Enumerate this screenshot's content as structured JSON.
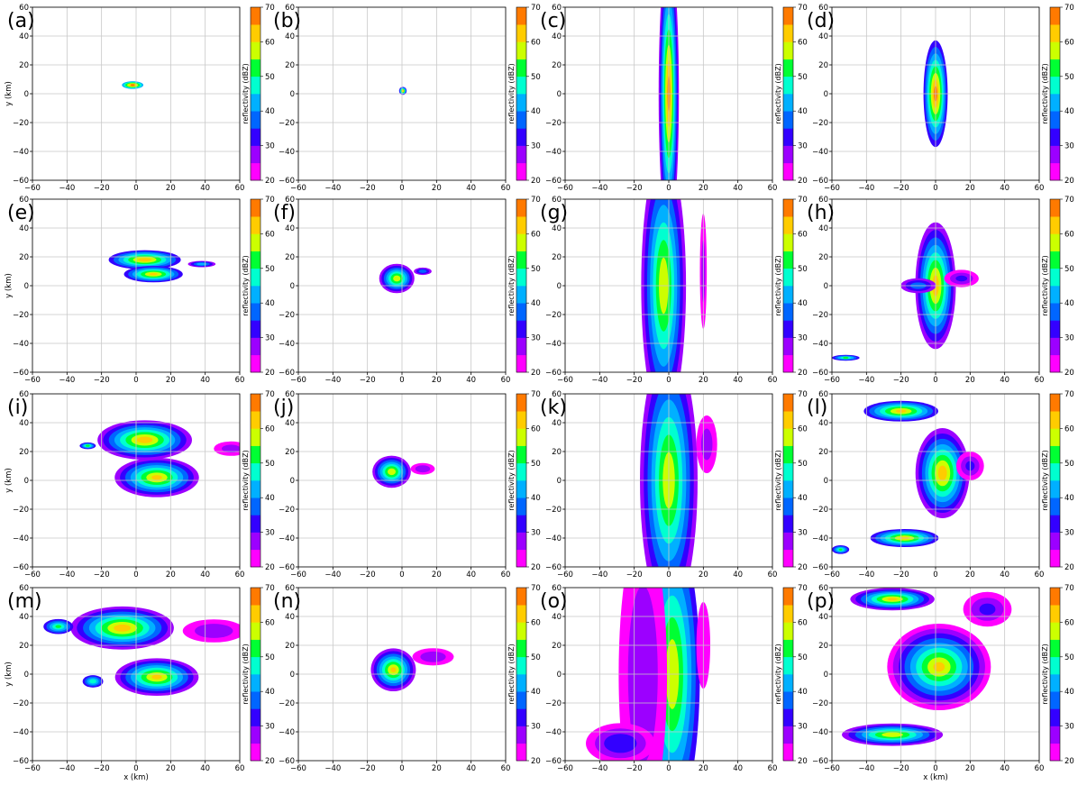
{
  "figure": {
    "colorbar": {
      "label": "reflectivity (dBZ)",
      "boundaries": [
        20,
        25,
        30,
        35,
        40,
        45,
        50,
        55,
        60,
        65,
        70
      ],
      "ticks": [
        20,
        30,
        40,
        50,
        60,
        70
      ],
      "colors": [
        "#ff00ff",
        "#9c00ff",
        "#3300ff",
        "#0066ff",
        "#00b0ff",
        "#00ffd0",
        "#00ff33",
        "#ccff00",
        "#ffcc00",
        "#ff7a00",
        "#ff1a00"
      ]
    }
  },
  "chart_data": [
    {
      "panel": "(a)",
      "type": "heatmap",
      "xlabel": "",
      "ylabel": "y (km)",
      "xlim": [
        -60,
        60
      ],
      "ylim": [
        -60,
        60
      ],
      "xticks": [
        -60,
        -40,
        -20,
        0,
        20,
        40,
        60
      ],
      "yticks": [
        -60,
        -40,
        -20,
        0,
        20,
        40,
        60
      ],
      "grid": true,
      "echoes": [
        {
          "x": -2,
          "y": 6,
          "rx": 7,
          "ry": 3,
          "peak_dBZ": 66,
          "edge_dBZ": 36
        }
      ]
    },
    {
      "panel": "(b)",
      "type": "heatmap",
      "xlabel": "",
      "ylabel": "",
      "xlim": [
        -60,
        60
      ],
      "ylim": [
        -60,
        60
      ],
      "xticks": [
        -60,
        -40,
        -20,
        0,
        20,
        40,
        60
      ],
      "yticks": [
        -60,
        -40,
        -20,
        0,
        20,
        40,
        60
      ],
      "grid": true,
      "echoes": [
        {
          "x": 0.5,
          "y": 2,
          "rx": 2.2,
          "ry": 2.8,
          "peak_dBZ": 64,
          "edge_dBZ": 30
        }
      ]
    },
    {
      "panel": "(c)",
      "type": "heatmap",
      "xlabel": "",
      "ylabel": "",
      "xlim": [
        -60,
        60
      ],
      "ylim": [
        -60,
        60
      ],
      "xticks": [
        -60,
        -40,
        -20,
        0,
        20,
        40,
        60
      ],
      "yticks": [
        -60,
        -40,
        -20,
        0,
        20,
        40,
        60
      ],
      "grid": true,
      "echoes": [
        {
          "x": 0,
          "y": 0,
          "rx": 6,
          "ry": 100,
          "peak_dBZ": 66,
          "edge_dBZ": 24
        }
      ]
    },
    {
      "panel": "(d)",
      "type": "heatmap",
      "xlabel": "",
      "ylabel": "",
      "xlim": [
        -60,
        60
      ],
      "ylim": [
        -60,
        60
      ],
      "xticks": [
        -60,
        -40,
        -20,
        0,
        20,
        40,
        60
      ],
      "yticks": [
        -60,
        -40,
        -20,
        0,
        20,
        40,
        60
      ],
      "grid": true,
      "echoes": [
        {
          "x": 0,
          "y": 0,
          "rx": 7,
          "ry": 37,
          "peak_dBZ": 66,
          "edge_dBZ": 30
        }
      ]
    },
    {
      "panel": "(e)",
      "type": "heatmap",
      "xlabel": "",
      "ylabel": "y (km)",
      "xlim": [
        -60,
        60
      ],
      "ylim": [
        -60,
        60
      ],
      "xticks": [
        -60,
        -40,
        -20,
        0,
        20,
        40,
        60
      ],
      "yticks": [
        -60,
        -40,
        -20,
        0,
        20,
        40,
        60
      ],
      "grid": true,
      "echoes": [
        {
          "x": 5,
          "y": 18,
          "rx": 22,
          "ry": 7,
          "peak_dBZ": 62,
          "edge_dBZ": 28
        },
        {
          "x": 10,
          "y": 8,
          "rx": 18,
          "ry": 6,
          "peak_dBZ": 60,
          "edge_dBZ": 28
        },
        {
          "x": 38,
          "y": 15,
          "rx": 9,
          "ry": 2.5,
          "peak_dBZ": 44,
          "edge_dBZ": 22
        }
      ]
    },
    {
      "panel": "(f)",
      "type": "heatmap",
      "xlabel": "",
      "ylabel": "",
      "xlim": [
        -60,
        60
      ],
      "ylim": [
        -60,
        60
      ],
      "xticks": [
        -60,
        -40,
        -20,
        0,
        20,
        40,
        60
      ],
      "yticks": [
        -60,
        -40,
        -20,
        0,
        20,
        40,
        60
      ],
      "grid": true,
      "echoes": [
        {
          "x": -3,
          "y": 5,
          "rx": 11,
          "ry": 11,
          "peak_dBZ": 58,
          "edge_dBZ": 22
        },
        {
          "x": 12,
          "y": 10,
          "rx": 6,
          "ry": 3,
          "peak_dBZ": 38,
          "edge_dBZ": 22
        }
      ]
    },
    {
      "panel": "(g)",
      "type": "heatmap",
      "xlabel": "",
      "ylabel": "",
      "xlim": [
        -60,
        60
      ],
      "ylim": [
        -60,
        60
      ],
      "xticks": [
        -60,
        -40,
        -20,
        0,
        20,
        40,
        60
      ],
      "yticks": [
        -60,
        -40,
        -20,
        0,
        20,
        40,
        60
      ],
      "grid": true,
      "echoes": [
        {
          "x": -3,
          "y": 0,
          "rx": 14,
          "ry": 100,
          "peak_dBZ": 58,
          "edge_dBZ": 22
        },
        {
          "x": 20,
          "y": 10,
          "rx": 2,
          "ry": 40,
          "peak_dBZ": 26,
          "edge_dBZ": 20
        }
      ]
    },
    {
      "panel": "(h)",
      "type": "heatmap",
      "xlabel": "",
      "ylabel": "",
      "xlim": [
        -60,
        60
      ],
      "ylim": [
        -60,
        60
      ],
      "xticks": [
        -60,
        -40,
        -20,
        0,
        20,
        40,
        60
      ],
      "yticks": [
        -60,
        -40,
        -20,
        0,
        20,
        40,
        60
      ],
      "grid": true,
      "echoes": [
        {
          "x": 0,
          "y": 0,
          "rx": 12,
          "ry": 45,
          "peak_dBZ": 62,
          "edge_dBZ": 24
        },
        {
          "x": -10,
          "y": 0,
          "rx": 12,
          "ry": 6,
          "peak_dBZ": 38,
          "edge_dBZ": 22
        },
        {
          "x": 15,
          "y": 5,
          "rx": 10,
          "ry": 6,
          "peak_dBZ": 30,
          "edge_dBZ": 20
        },
        {
          "x": -52,
          "y": -50,
          "rx": 8,
          "ry": 2,
          "peak_dBZ": 50,
          "edge_dBZ": 30
        }
      ]
    },
    {
      "panel": "(i)",
      "type": "heatmap",
      "xlabel": "",
      "ylabel": "y (km)",
      "xlim": [
        -60,
        60
      ],
      "ylim": [
        -60,
        60
      ],
      "xticks": [
        -60,
        -40,
        -20,
        0,
        20,
        40,
        60
      ],
      "yticks": [
        -60,
        -40,
        -20,
        0,
        20,
        40,
        60
      ],
      "grid": true,
      "echoes": [
        {
          "x": 5,
          "y": 28,
          "rx": 28,
          "ry": 14,
          "peak_dBZ": 62,
          "edge_dBZ": 24
        },
        {
          "x": 12,
          "y": 2,
          "rx": 25,
          "ry": 14,
          "peak_dBZ": 60,
          "edge_dBZ": 24
        },
        {
          "x": 55,
          "y": 22,
          "rx": 10,
          "ry": 5,
          "peak_dBZ": 26,
          "edge_dBZ": 20
        },
        {
          "x": -28,
          "y": 24,
          "rx": 5,
          "ry": 2.5,
          "peak_dBZ": 52,
          "edge_dBZ": 28
        }
      ]
    },
    {
      "panel": "(j)",
      "type": "heatmap",
      "xlabel": "",
      "ylabel": "",
      "xlim": [
        -60,
        60
      ],
      "ylim": [
        -60,
        60
      ],
      "xticks": [
        -60,
        -40,
        -20,
        0,
        20,
        40,
        60
      ],
      "yticks": [
        -60,
        -40,
        -20,
        0,
        20,
        40,
        60
      ],
      "grid": true,
      "echoes": [
        {
          "x": -6,
          "y": 6,
          "rx": 12,
          "ry": 12,
          "peak_dBZ": 58,
          "edge_dBZ": 22
        },
        {
          "x": 12,
          "y": 8,
          "rx": 7,
          "ry": 4,
          "peak_dBZ": 28,
          "edge_dBZ": 20
        }
      ]
    },
    {
      "panel": "(k)",
      "type": "heatmap",
      "xlabel": "",
      "ylabel": "",
      "xlim": [
        -60,
        60
      ],
      "ylim": [
        -60,
        60
      ],
      "xticks": [
        -60,
        -40,
        -20,
        0,
        20,
        40,
        60
      ],
      "yticks": [
        -60,
        -40,
        -20,
        0,
        20,
        40,
        60
      ],
      "grid": true,
      "echoes": [
        {
          "x": 0,
          "y": 0,
          "rx": 18,
          "ry": 100,
          "peak_dBZ": 58,
          "edge_dBZ": 22
        },
        {
          "x": 22,
          "y": 25,
          "rx": 6,
          "ry": 20,
          "peak_dBZ": 26,
          "edge_dBZ": 20
        }
      ]
    },
    {
      "panel": "(l)",
      "type": "heatmap",
      "xlabel": "",
      "ylabel": "",
      "xlim": [
        -60,
        60
      ],
      "ylim": [
        -60,
        60
      ],
      "xticks": [
        -60,
        -40,
        -20,
        0,
        20,
        40,
        60
      ],
      "yticks": [
        -60,
        -40,
        -20,
        0,
        20,
        40,
        60
      ],
      "grid": true,
      "echoes": [
        {
          "x": 4,
          "y": 5,
          "rx": 16,
          "ry": 32,
          "peak_dBZ": 62,
          "edge_dBZ": 24
        },
        {
          "x": -20,
          "y": 48,
          "rx": 24,
          "ry": 8,
          "peak_dBZ": 60,
          "edge_dBZ": 26
        },
        {
          "x": -18,
          "y": -40,
          "rx": 22,
          "ry": 7,
          "peak_dBZ": 60,
          "edge_dBZ": 26
        },
        {
          "x": 20,
          "y": 10,
          "rx": 8,
          "ry": 10,
          "peak_dBZ": 30,
          "edge_dBZ": 20
        },
        {
          "x": -55,
          "y": -48,
          "rx": 5,
          "ry": 3,
          "peak_dBZ": 50,
          "edge_dBZ": 30
        }
      ]
    },
    {
      "panel": "(m)",
      "type": "heatmap",
      "xlabel": "x (km)",
      "ylabel": "y (km)",
      "xlim": [
        -60,
        60
      ],
      "ylim": [
        -60,
        60
      ],
      "xticks": [
        -60,
        -40,
        -20,
        0,
        20,
        40,
        60
      ],
      "yticks": [
        -60,
        -40,
        -20,
        0,
        20,
        40,
        60
      ],
      "grid": true,
      "echoes": [
        {
          "x": -8,
          "y": 32,
          "rx": 32,
          "ry": 16,
          "peak_dBZ": 62,
          "edge_dBZ": 22
        },
        {
          "x": 12,
          "y": -2,
          "rx": 26,
          "ry": 14,
          "peak_dBZ": 60,
          "edge_dBZ": 22
        },
        {
          "x": 45,
          "y": 30,
          "rx": 18,
          "ry": 8,
          "peak_dBZ": 28,
          "edge_dBZ": 20
        },
        {
          "x": -45,
          "y": 33,
          "rx": 10,
          "ry": 6,
          "peak_dBZ": 50,
          "edge_dBZ": 26
        },
        {
          "x": -25,
          "y": -5,
          "rx": 7,
          "ry": 5,
          "peak_dBZ": 48,
          "edge_dBZ": 26
        }
      ]
    },
    {
      "panel": "(n)",
      "type": "heatmap",
      "xlabel": "",
      "ylabel": "",
      "xlim": [
        -60,
        60
      ],
      "ylim": [
        -60,
        60
      ],
      "xticks": [
        -60,
        -40,
        -20,
        0,
        20,
        40,
        60
      ],
      "yticks": [
        -60,
        -40,
        -20,
        0,
        20,
        40,
        60
      ],
      "grid": true,
      "echoes": [
        {
          "x": -5,
          "y": 3,
          "rx": 14,
          "ry": 16,
          "peak_dBZ": 60,
          "edge_dBZ": 22
        },
        {
          "x": 18,
          "y": 12,
          "rx": 12,
          "ry": 6,
          "peak_dBZ": 28,
          "edge_dBZ": 20
        }
      ]
    },
    {
      "panel": "(o)",
      "type": "heatmap",
      "xlabel": "",
      "ylabel": "",
      "xlim": [
        -60,
        60
      ],
      "ylim": [
        -60,
        60
      ],
      "xticks": [
        -60,
        -40,
        -20,
        0,
        20,
        40,
        60
      ],
      "yticks": [
        -60,
        -40,
        -20,
        0,
        20,
        40,
        60
      ],
      "grid": true,
      "echoes": [
        {
          "x": 2,
          "y": 0,
          "rx": 16,
          "ry": 100,
          "peak_dBZ": 58,
          "edge_dBZ": 30
        },
        {
          "x": -15,
          "y": 0,
          "rx": 14,
          "ry": 100,
          "peak_dBZ": 28,
          "edge_dBZ": 20
        },
        {
          "x": -28,
          "y": -48,
          "rx": 20,
          "ry": 14,
          "peak_dBZ": 34,
          "edge_dBZ": 20
        },
        {
          "x": 20,
          "y": 20,
          "rx": 4,
          "ry": 30,
          "peak_dBZ": 24,
          "edge_dBZ": 20
        }
      ]
    },
    {
      "panel": "(p)",
      "type": "heatmap",
      "xlabel": "x (km)",
      "ylabel": "",
      "xlim": [
        -60,
        60
      ],
      "ylim": [
        -60,
        60
      ],
      "xticks": [
        -60,
        -40,
        -20,
        0,
        20,
        40,
        60
      ],
      "yticks": [
        -60,
        -40,
        -20,
        0,
        20,
        40,
        60
      ],
      "grid": true,
      "echoes": [
        {
          "x": 2,
          "y": 5,
          "rx": 30,
          "ry": 30,
          "peak_dBZ": 60,
          "edge_dBZ": 20
        },
        {
          "x": -25,
          "y": 52,
          "rx": 25,
          "ry": 8,
          "peak_dBZ": 60,
          "edge_dBZ": 24
        },
        {
          "x": -25,
          "y": -42,
          "rx": 30,
          "ry": 8,
          "peak_dBZ": 58,
          "edge_dBZ": 24
        },
        {
          "x": 30,
          "y": 45,
          "rx": 14,
          "ry": 12,
          "peak_dBZ": 30,
          "edge_dBZ": 20
        }
      ]
    }
  ]
}
